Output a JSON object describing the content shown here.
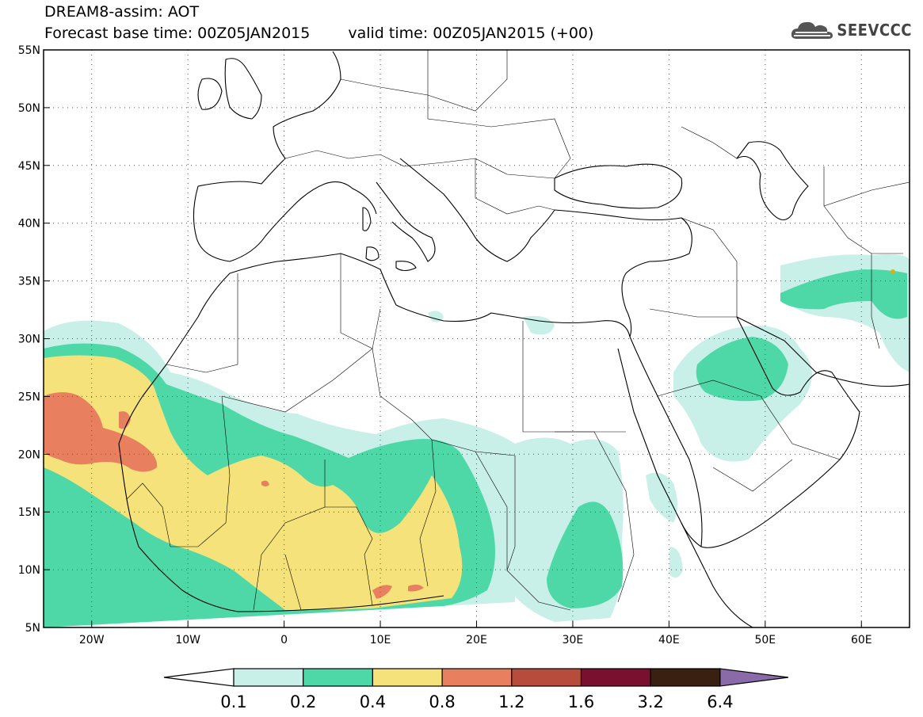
{
  "header": {
    "line1": "DREAM8-assim: AOT",
    "line2_left": "Forecast base time: 00Z05JAN2015",
    "line2_right": "valid time: 00Z05JAN2015 (+00)"
  },
  "logo": {
    "text": "SEEVCCC",
    "icon": "cloud-logo-icon"
  },
  "map": {
    "lat_labels": [
      "55N",
      "50N",
      "45N",
      "40N",
      "35N",
      "30N",
      "25N",
      "20N",
      "15N",
      "10N",
      "5N"
    ],
    "lon_labels": [
      "20W",
      "10W",
      "0",
      "10E",
      "20E",
      "30E",
      "40E",
      "50E",
      "60E"
    ],
    "extent": {
      "lon_min": -25,
      "lon_max": 65,
      "lat_min": 5,
      "lat_max": 55
    }
  },
  "legend": {
    "labels": [
      "0.1",
      "0.2",
      "0.4",
      "0.8",
      "1.2",
      "1.6",
      "3.2",
      "6.4"
    ],
    "colors": [
      "#ffffff",
      "#c8f0e8",
      "#4ed8a8",
      "#f5e27a",
      "#e88060",
      "#b84c3c",
      "#7a1030",
      "#3a2010",
      "#8a6aa8"
    ]
  },
  "colors": {
    "c01": "#c8f0e8",
    "c02": "#4ed8a8",
    "c04": "#f5e27a",
    "c08": "#e88060",
    "c12": "#b84c3c"
  }
}
